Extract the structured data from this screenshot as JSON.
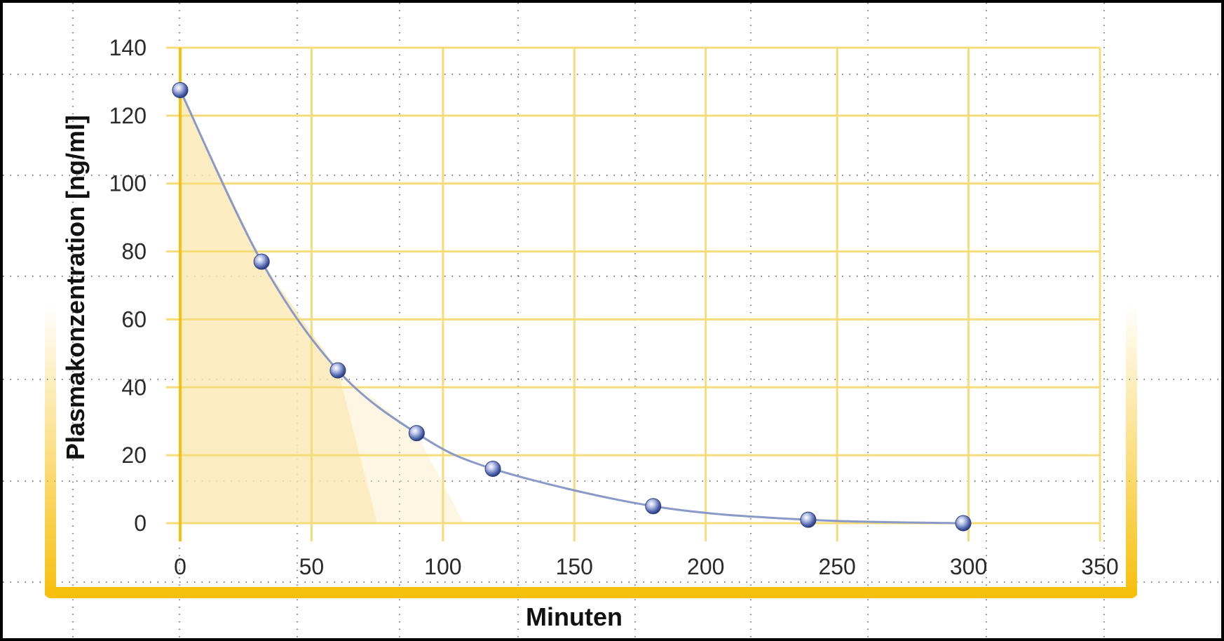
{
  "chart_data": {
    "type": "line",
    "xlabel": "Minuten",
    "ylabel": "Plasmakonzentration [ng/ml]",
    "xlim": [
      0,
      350
    ],
    "ylim": [
      0,
      140
    ],
    "x_ticks": [
      "0",
      "50",
      "100",
      "150",
      "200",
      "250",
      "300",
      "350"
    ],
    "y_ticks": [
      "0",
      "20",
      "40",
      "60",
      "80",
      "100",
      "120",
      "140"
    ],
    "series": [
      {
        "x": [
          0,
          31,
          60,
          90,
          119,
          180,
          239,
          298
        ],
        "y": [
          127.5,
          77,
          45,
          26.5,
          16,
          5,
          1,
          0
        ]
      }
    ],
    "grid": true,
    "colors": {
      "grid": "#f5dc7a",
      "frame": "#f7c00d",
      "curve": "#8a9ac8",
      "marker": "#4a5fa8",
      "fill": "#fbe9b6"
    }
  }
}
